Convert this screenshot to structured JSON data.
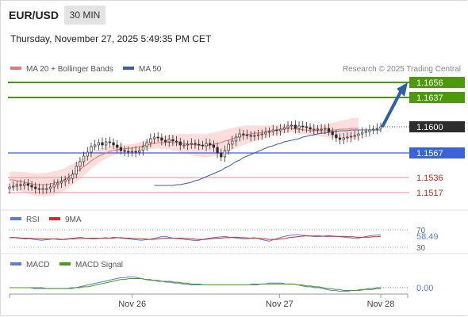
{
  "header": {
    "symbol": "EUR/USD",
    "timeframe": "30 MIN",
    "datetime": "Thursday, November 27, 2025 5:49:35 PM CET"
  },
  "colors": {
    "candle": "#2d2d2d",
    "ma20": "#e8766f",
    "bollinger_fill": "#fcd6d4",
    "ma50": "#3c5fa0",
    "resistance": "#4c9a0b",
    "support": "#e8a7a7",
    "pivot": "#3a63d8",
    "arrow": "#2f5fa8",
    "rsi": "#5b7fd0",
    "rsi_ma": "#d42a2a",
    "macd": "#5b7fd0",
    "macd_signal": "#4a9a1b",
    "price_badge": "#2d2d2d"
  },
  "chart_data": [
    {
      "type": "candlestick",
      "title": "",
      "legend": [
        "MA 20 + Bollinger Bands",
        "MA 50"
      ],
      "attribution": "Research © 2025 Trading Central",
      "current_price": "1.1600",
      "ylim": [
        1.151,
        1.166
      ],
      "levels": [
        {
          "value": 1.1656,
          "label": "1.1656",
          "kind": "resistance"
        },
        {
          "value": 1.1637,
          "label": "1.1637",
          "kind": "resistance"
        },
        {
          "value": 1.1567,
          "label": "1.1567",
          "kind": "pivot"
        },
        {
          "value": 1.1536,
          "label": "1.1536",
          "kind": "support"
        },
        {
          "value": 1.1517,
          "label": "1.1517",
          "kind": "support"
        }
      ],
      "arrow": {
        "from": 1.16,
        "to": 1.1656
      },
      "x_ticks": [
        {
          "label": "Nov 26",
          "index": 40
        },
        {
          "label": "Nov 27",
          "index": 88
        },
        {
          "label": "Nov 28",
          "index": 121
        }
      ],
      "closes": [
        1.1524,
        1.1525,
        1.1527,
        1.1526,
        1.1528,
        1.1526,
        1.1524,
        1.1522,
        1.1521,
        1.1522,
        1.1522,
        1.1524,
        1.1527,
        1.1529,
        1.1531,
        1.1533,
        1.1535,
        1.154,
        1.155,
        1.1556,
        1.1563,
        1.1568,
        1.1575,
        1.1577,
        1.158,
        1.1577,
        1.1581,
        1.158,
        1.1577,
        1.1574,
        1.157,
        1.1569,
        1.1568,
        1.1569,
        1.1568,
        1.157,
        1.1575,
        1.158,
        1.1585,
        1.1587,
        1.1586,
        1.1583,
        1.1581,
        1.1584,
        1.1582,
        1.1581,
        1.1577,
        1.1577,
        1.1578,
        1.1579,
        1.1578,
        1.1577,
        1.1576,
        1.1579,
        1.1577,
        1.1574,
        1.1567,
        1.1562,
        1.157,
        1.1578,
        1.1582,
        1.1587,
        1.1591,
        1.159,
        1.1589,
        1.1588,
        1.1589,
        1.159,
        1.1591,
        1.1593,
        1.1594,
        1.1596,
        1.1595,
        1.1597,
        1.1599,
        1.1601,
        1.1602,
        1.1598,
        1.1601,
        1.16,
        1.1599,
        1.1597,
        1.1597,
        1.1597,
        1.1597,
        1.1598,
        1.1594,
        1.159,
        1.1586,
        1.1584,
        1.1586,
        1.1587,
        1.1588,
        1.1589,
        1.1591,
        1.1593,
        1.1594,
        1.1596,
        1.1597,
        1.1598,
        1.16
      ],
      "ma20": [
        1.1533,
        1.1533,
        1.1532,
        1.1531,
        1.153,
        1.1529,
        1.1528,
        1.1527,
        1.1527,
        1.1527,
        1.1527,
        1.1528,
        1.1529,
        1.153,
        1.1532,
        1.1534,
        1.1537,
        1.154,
        1.1543,
        1.1546,
        1.155,
        1.1553,
        1.1557,
        1.156,
        1.1563,
        1.1565,
        1.1567,
        1.1569,
        1.157,
        1.1571,
        1.1572,
        1.1572,
        1.1573,
        1.1573,
        1.1574,
        1.1575,
        1.1576,
        1.1577,
        1.1578,
        1.1579,
        1.158,
        1.158,
        1.158,
        1.1581,
        1.158,
        1.158,
        1.1579,
        1.1579,
        1.1578,
        1.1578,
        1.1577,
        1.1577,
        1.1576,
        1.1576,
        1.1577,
        1.1578,
        1.1579,
        1.158,
        1.1582,
        1.1583,
        1.1585,
        1.1586,
        1.1588,
        1.1589,
        1.159,
        1.1591,
        1.1592,
        1.1592,
        1.1593,
        1.1594,
        1.1595,
        1.1595,
        1.1596,
        1.1597,
        1.1597,
        1.1598,
        1.1598,
        1.1597,
        1.1597,
        1.1596,
        1.1596,
        1.1595,
        1.1595,
        1.1595,
        1.1595,
        1.1595,
        1.1595,
        1.1596,
        1.1596,
        1.1597,
        1.1597,
        1.1597,
        1.1598,
        1.1598,
        1.1598
      ],
      "ma50": [
        1.1526,
        1.1526,
        1.1526,
        1.1526,
        1.1526,
        1.1526,
        1.1527,
        1.1527,
        1.1528,
        1.1529,
        1.153,
        1.1532,
        1.1533,
        1.1535,
        1.1537,
        1.1539,
        1.1541,
        1.1543,
        1.1545,
        1.1548,
        1.155,
        1.1553,
        1.1556,
        1.1558,
        1.1561,
        1.1563,
        1.1565,
        1.1567,
        1.1569,
        1.1571,
        1.1573,
        1.1575,
        1.1576,
        1.1578,
        1.1579,
        1.1581,
        1.1582,
        1.1583,
        1.1584,
        1.1585,
        1.1587,
        1.1588,
        1.1589,
        1.159,
        1.1591,
        1.1592,
        1.1592,
        1.1593,
        1.1594,
        1.1594,
        1.1595,
        1.1595,
        1.1595,
        1.1596,
        1.1596,
        1.1596,
        1.1596,
        1.1596,
        1.1596,
        1.1596,
        1.1596,
        1.1596
      ]
    },
    {
      "type": "line",
      "title": "",
      "legend": [
        "RSI",
        "9MA"
      ],
      "y_ticks": [
        "70",
        "30"
      ],
      "current_value": "58.49",
      "series": [
        {
          "name": "RSI",
          "values": [
            52,
            53,
            51,
            50,
            49,
            50,
            48,
            47,
            46,
            47,
            48,
            49,
            48,
            47,
            49,
            50,
            51,
            52,
            53,
            51,
            50,
            49,
            50,
            51,
            52,
            51,
            53,
            52,
            51,
            50,
            49,
            48,
            47,
            46,
            47,
            48,
            50,
            52,
            54,
            55,
            53,
            51,
            50,
            49,
            48,
            47,
            46,
            45,
            47,
            49,
            51,
            52,
            53,
            54,
            55,
            53,
            52,
            51,
            50,
            49,
            50,
            52,
            51,
            48,
            46,
            44,
            47,
            50,
            53,
            55,
            57,
            58,
            59,
            58,
            57,
            56,
            55,
            54,
            55,
            56,
            57,
            56,
            55,
            54,
            53,
            52,
            51,
            50,
            52,
            54,
            56,
            57,
            58,
            58.49
          ]
        },
        {
          "name": "9MA",
          "values": [
            52,
            52,
            52,
            51,
            51,
            51,
            50,
            50,
            49,
            49,
            49,
            49,
            49,
            48,
            48,
            49,
            49,
            50,
            50,
            51,
            51,
            51,
            51,
            51,
            51,
            51,
            51,
            52,
            52,
            51,
            51,
            50,
            50,
            49,
            49,
            48,
            48,
            49,
            50,
            51,
            51,
            51,
            51,
            51,
            50,
            50,
            49,
            48,
            48,
            48,
            49,
            50,
            51,
            51,
            52,
            52,
            53,
            53,
            52,
            52,
            51,
            51,
            51,
            50,
            49,
            48,
            48,
            48,
            49,
            50,
            52,
            53,
            54,
            55,
            56,
            56,
            56,
            56,
            56,
            55,
            55,
            55,
            55,
            55,
            55,
            54,
            54,
            53,
            53,
            53,
            53,
            54,
            54,
            55
          ]
        }
      ]
    },
    {
      "type": "line",
      "title": "",
      "legend": [
        "MACD",
        "MACD Signal"
      ],
      "current_value": "0.00",
      "series": [
        {
          "name": "MACD",
          "values": [
            0,
            0,
            0,
            0,
            0,
            0,
            -1,
            -1,
            -1,
            -1,
            -1,
            -1,
            -1,
            -1,
            -1,
            0,
            0,
            1,
            2,
            3,
            4,
            5,
            6,
            7,
            8,
            9,
            10,
            11,
            11,
            12,
            12,
            11,
            10,
            9,
            8,
            8,
            7,
            7,
            6,
            6,
            5,
            5,
            4,
            4,
            3,
            3,
            3,
            3,
            3,
            3,
            3,
            3,
            3,
            3,
            3,
            3,
            3,
            3,
            3,
            4,
            4,
            4,
            4,
            5,
            5,
            5,
            5,
            4,
            4,
            4,
            3,
            2,
            1,
            1,
            0,
            0,
            -1,
            -2,
            -3,
            -3,
            -4,
            -4,
            -4,
            -3,
            -3,
            -2,
            -2,
            -1,
            -1,
            0,
            0
          ]
        },
        {
          "name": "MACD Signal",
          "values": [
            0,
            0,
            0,
            0,
            0,
            0,
            0,
            0,
            0,
            -1,
            -1,
            -1,
            -1,
            -1,
            -1,
            -1,
            0,
            0,
            1,
            1,
            2,
            3,
            4,
            5,
            6,
            7,
            8,
            9,
            9,
            10,
            10,
            10,
            10,
            9,
            9,
            8,
            8,
            7,
            7,
            7,
            6,
            6,
            5,
            5,
            4,
            4,
            4,
            3,
            3,
            3,
            3,
            3,
            3,
            3,
            3,
            3,
            3,
            3,
            3,
            3,
            3,
            4,
            4,
            4,
            4,
            4,
            4,
            4,
            4,
            4,
            3,
            3,
            2,
            2,
            1,
            1,
            0,
            -1,
            -1,
            -2,
            -2,
            -3,
            -3,
            -3,
            -3,
            -3,
            -2,
            -2,
            -2,
            -1,
            -1
          ]
        }
      ]
    }
  ]
}
